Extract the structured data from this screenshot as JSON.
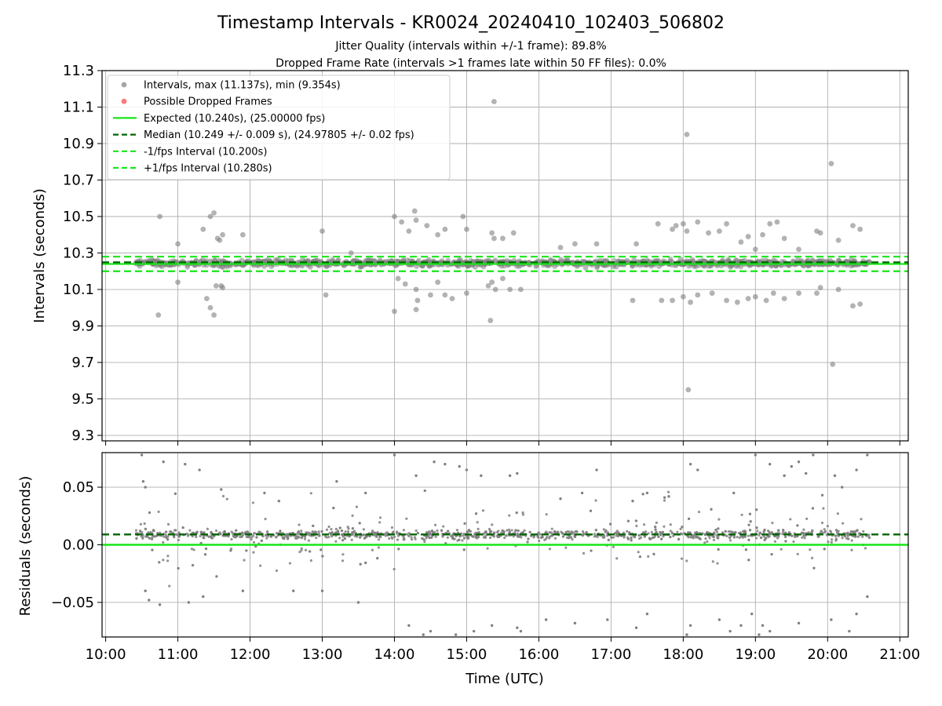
{
  "title": "Timestamp Intervals - KR0024_20240410_102403_506802",
  "subtitle1": "Jitter Quality (intervals within +/-1 frame): 89.8%",
  "subtitle2": "Dropped Frame Rate (intervals >1 frames late within 50 FF files): 0.0%",
  "colors": {
    "points": "#808080",
    "dropped": "#ff4040",
    "expected": "#17e617",
    "median": "#006400",
    "band": "#17e617",
    "grid": "#b0b0b0"
  },
  "chart_data": [
    {
      "type": "scatter",
      "panel": "intervals",
      "ylabel": "Intervals (seconds)",
      "xlabel": "",
      "ylim": [
        9.27,
        11.3
      ],
      "xlim": [
        "09:57",
        "21:07"
      ],
      "yticks": [
        "9.3",
        "9.5",
        "9.7",
        "9.9",
        "10.1",
        "10.3",
        "10.5",
        "10.7",
        "10.9",
        "11.1",
        "11.3"
      ],
      "grid": true,
      "legend_position": "upper left",
      "legend": [
        {
          "label": "Intervals, max (11.137s), min (9.354s)",
          "style": "point",
          "color": "#808080"
        },
        {
          "label": "Possible Dropped Frames",
          "style": "point",
          "color": "#ff4040"
        },
        {
          "label": "Expected (10.240s), (25.00000 fps)",
          "style": "solid",
          "color": "#17e617"
        },
        {
          "label": "Median (10.249 +/- 0.009 s), (24.97805 +/- 0.02 fps)",
          "style": "dashed",
          "color": "#006400"
        },
        {
          "label": "-1/fps Interval (10.200s)",
          "style": "dashed",
          "color": "#17e617"
        },
        {
          "label": "+1/fps Interval (10.280s)",
          "style": "dashed",
          "color": "#17e617"
        }
      ],
      "reference_lines": [
        {
          "name": "Expected",
          "y": 10.24,
          "style": "solid",
          "color": "#17e617"
        },
        {
          "name": "Median",
          "y": 10.249,
          "style": "dashed",
          "color": "#006400"
        },
        {
          "name": "-1/fps Interval",
          "y": 10.2,
          "style": "dashed",
          "color": "#17e617"
        },
        {
          "name": "+1/fps Interval",
          "y": 10.28,
          "style": "dashed",
          "color": "#17e617"
        }
      ],
      "band": {
        "x_start": "10:25",
        "x_end": "20:35",
        "y_center": 10.245,
        "spread": 0.04
      },
      "series": [
        {
          "name": "Intervals",
          "x_hours": [
            10.75,
            10.73,
            11.0,
            11.35,
            11.45,
            11.5,
            11.55,
            11.58,
            11.62,
            11.4,
            11.45,
            11.5,
            11.53,
            11.6,
            11.62,
            11.0,
            11.9,
            13.0,
            13.05,
            13.4,
            14.0,
            14.1,
            14.2,
            14.3,
            14.28,
            14.45,
            14.6,
            14.7,
            14.95,
            15.0,
            15.35,
            15.38,
            15.5,
            15.65,
            14.05,
            14.15,
            14.3,
            14.32,
            14.5,
            14.6,
            14.7,
            14.8,
            15.0,
            15.3,
            15.35,
            15.4,
            15.5,
            15.6,
            15.75,
            14.0,
            14.3,
            15.33,
            15.38,
            16.3,
            16.5,
            16.8,
            17.35,
            17.3,
            17.65,
            17.85,
            17.9,
            18.0,
            18.05,
            18.2,
            18.35,
            18.5,
            18.6,
            18.8,
            18.9,
            19.0,
            19.1,
            19.2,
            19.3,
            19.4,
            19.6,
            19.85,
            19.9,
            20.15,
            20.35,
            20.45,
            17.7,
            17.85,
            18.0,
            18.1,
            18.2,
            18.4,
            18.6,
            18.75,
            18.9,
            19.0,
            19.15,
            19.25,
            19.4,
            19.6,
            19.85,
            19.9,
            20.15,
            20.35,
            20.45,
            18.05,
            18.07,
            20.05,
            20.07
          ],
          "y": [
            10.5,
            9.96,
            10.35,
            10.43,
            10.5,
            10.52,
            10.38,
            10.37,
            10.4,
            10.05,
            10.0,
            9.96,
            10.12,
            10.12,
            10.11,
            10.14,
            10.4,
            10.42,
            10.07,
            10.3,
            10.5,
            10.47,
            10.42,
            10.48,
            10.53,
            10.45,
            10.4,
            10.43,
            10.5,
            10.43,
            10.41,
            10.38,
            10.38,
            10.41,
            10.16,
            10.13,
            10.1,
            10.04,
            10.07,
            10.14,
            10.07,
            10.05,
            10.08,
            10.12,
            10.14,
            10.1,
            10.16,
            10.1,
            10.1,
            9.98,
            9.99,
            9.93,
            11.13,
            10.33,
            10.35,
            10.35,
            10.35,
            10.04,
            10.46,
            10.43,
            10.45,
            10.46,
            10.42,
            10.47,
            10.41,
            10.42,
            10.46,
            10.36,
            10.39,
            10.32,
            10.4,
            10.46,
            10.47,
            10.38,
            10.32,
            10.42,
            10.41,
            10.37,
            10.45,
            10.43,
            10.04,
            10.04,
            10.06,
            10.03,
            10.07,
            10.08,
            10.04,
            10.03,
            10.05,
            10.06,
            10.04,
            10.08,
            10.05,
            10.08,
            10.08,
            10.11,
            10.1,
            10.01,
            10.02,
            10.95,
            9.55,
            10.79,
            9.69
          ]
        }
      ]
    },
    {
      "type": "scatter",
      "panel": "residuals",
      "ylabel": "Residuals (seconds)",
      "xlabel": "Time (UTC)",
      "ylim": [
        -0.08,
        0.08
      ],
      "xlim": [
        "09:57",
        "21:07"
      ],
      "yticks": [
        "−0.05",
        "0.00",
        "0.05"
      ],
      "xticks": [
        "10:00",
        "11:00",
        "12:00",
        "13:00",
        "14:00",
        "15:00",
        "16:00",
        "17:00",
        "18:00",
        "19:00",
        "20:00",
        "21:00"
      ],
      "grid": true,
      "reference_lines": [
        {
          "name": "Expected",
          "y": 0.0,
          "style": "solid",
          "color": "#17e617"
        },
        {
          "name": "Median",
          "y": 0.009,
          "style": "dashed",
          "color": "#006400"
        }
      ],
      "band": {
        "x_start": "10:25",
        "x_end": "20:35",
        "y_center": 0.009,
        "spread": 0.012
      },
      "series": [
        {
          "name": "Residuals",
          "x_hours": [
            10.5,
            10.52,
            10.55,
            10.8,
            11.1,
            11.3,
            11.6,
            12.2,
            12.4,
            13.2,
            13.6,
            14.0,
            14.3,
            14.55,
            14.7,
            14.9,
            15.0,
            15.2,
            15.6,
            15.7,
            16.3,
            16.6,
            16.8,
            17.3,
            17.5,
            17.8,
            18.1,
            18.2,
            18.7,
            19.0,
            19.2,
            19.4,
            19.5,
            19.6,
            19.7,
            19.8,
            20.1,
            20.2,
            20.4,
            20.55,
            10.55,
            10.6,
            10.75,
            11.15,
            11.35,
            11.9,
            12.6,
            13.0,
            13.5,
            14.2,
            14.4,
            14.5,
            14.85,
            15.1,
            15.35,
            15.7,
            15.75,
            16.1,
            16.5,
            16.95,
            17.35,
            17.5,
            18.05,
            18.1,
            18.5,
            18.65,
            18.8,
            18.95,
            19.05,
            19.1,
            19.2,
            19.6,
            20.05,
            20.3,
            20.4,
            20.55
          ],
          "y": [
            0.078,
            0.055,
            0.05,
            0.072,
            0.07,
            0.065,
            0.048,
            0.045,
            0.038,
            0.055,
            0.045,
            0.078,
            0.06,
            0.072,
            0.07,
            0.068,
            0.065,
            0.06,
            0.06,
            0.062,
            0.04,
            0.045,
            0.065,
            0.038,
            0.045,
            0.042,
            0.07,
            0.065,
            0.045,
            0.078,
            0.07,
            0.06,
            0.068,
            0.072,
            0.062,
            0.078,
            0.06,
            0.05,
            0.065,
            0.078,
            -0.04,
            -0.048,
            -0.052,
            -0.05,
            -0.045,
            -0.04,
            -0.04,
            -0.04,
            -0.05,
            -0.07,
            -0.078,
            -0.075,
            -0.078,
            -0.075,
            -0.07,
            -0.072,
            -0.075,
            -0.065,
            -0.068,
            -0.065,
            -0.072,
            -0.06,
            -0.078,
            -0.07,
            -0.065,
            -0.075,
            -0.07,
            -0.06,
            -0.078,
            -0.07,
            -0.075,
            -0.068,
            -0.065,
            -0.075,
            -0.06,
            -0.045
          ]
        }
      ]
    }
  ]
}
